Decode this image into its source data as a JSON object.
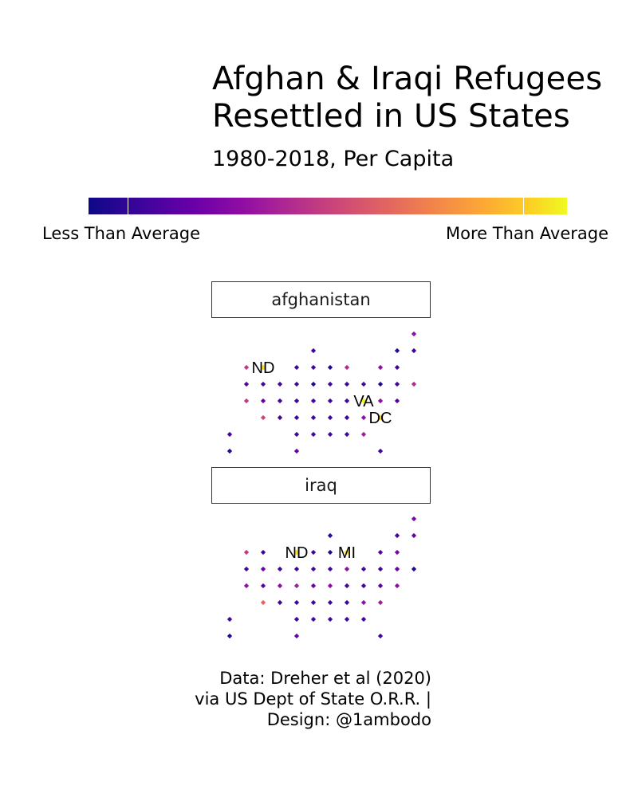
{
  "title_line1": "Afghan & Iraqi Refugees",
  "title_line2": "Resettled in US States",
  "subtitle": "1980-2018, Per Capita",
  "legend": {
    "low_label": "Less Than Average",
    "high_label": "More Than Average"
  },
  "caption": {
    "line1": "Data: Dreher et al (2020)",
    "line2": "via US Dept of State O.R.R. |",
    "line3": "Design: @1ambodo"
  },
  "chart_data": [
    {
      "type": "heatmap",
      "panel": "afghanistan",
      "scale": "plasma",
      "cells": [
        {
          "col": 11,
          "row": 0,
          "v": 0.3
        },
        {
          "col": 5,
          "row": 1,
          "v": 0.1
        },
        {
          "col": 10,
          "row": 1,
          "v": 0.05
        },
        {
          "col": 11,
          "row": 1,
          "v": 0.1
        },
        {
          "col": 1,
          "row": 2,
          "v": 0.45
        },
        {
          "col": 2,
          "row": 2,
          "v": 0.95,
          "label": "ND"
        },
        {
          "col": 4,
          "row": 2,
          "v": 0.1
        },
        {
          "col": 5,
          "row": 2,
          "v": 0.1
        },
        {
          "col": 6,
          "row": 2,
          "v": 0.05
        },
        {
          "col": 7,
          "row": 2,
          "v": 0.4
        },
        {
          "col": 9,
          "row": 2,
          "v": 0.3
        },
        {
          "col": 10,
          "row": 2,
          "v": 0.1
        },
        {
          "col": 1,
          "row": 3,
          "v": 0.15
        },
        {
          "col": 2,
          "row": 3,
          "v": 0.1
        },
        {
          "col": 3,
          "row": 3,
          "v": 0.1
        },
        {
          "col": 4,
          "row": 3,
          "v": 0.1
        },
        {
          "col": 5,
          "row": 3,
          "v": 0.05
        },
        {
          "col": 6,
          "row": 3,
          "v": 0.1
        },
        {
          "col": 7,
          "row": 3,
          "v": 0.1
        },
        {
          "col": 8,
          "row": 3,
          "v": 0.1
        },
        {
          "col": 9,
          "row": 3,
          "v": 0.05
        },
        {
          "col": 10,
          "row": 3,
          "v": 0.1
        },
        {
          "col": 11,
          "row": 3,
          "v": 0.4
        },
        {
          "col": 1,
          "row": 4,
          "v": 0.45
        },
        {
          "col": 2,
          "row": 4,
          "v": 0.2
        },
        {
          "col": 3,
          "row": 4,
          "v": 0.1
        },
        {
          "col": 4,
          "row": 4,
          "v": 0.1
        },
        {
          "col": 5,
          "row": 4,
          "v": 0.1
        },
        {
          "col": 6,
          "row": 4,
          "v": 0.1
        },
        {
          "col": 7,
          "row": 4,
          "v": 0.1
        },
        {
          "col": 8,
          "row": 4,
          "v": 1.0,
          "label": "VA"
        },
        {
          "col": 9,
          "row": 4,
          "v": 0.3
        },
        {
          "col": 10,
          "row": 4,
          "v": 0.15
        },
        {
          "col": 2,
          "row": 5,
          "v": 0.5
        },
        {
          "col": 3,
          "row": 5,
          "v": 0.1
        },
        {
          "col": 4,
          "row": 5,
          "v": 0.1
        },
        {
          "col": 5,
          "row": 5,
          "v": 0.1
        },
        {
          "col": 6,
          "row": 5,
          "v": 0.1
        },
        {
          "col": 7,
          "row": 5,
          "v": 0.1
        },
        {
          "col": 8,
          "row": 5,
          "v": 0.3
        },
        {
          "col": 9,
          "row": 5,
          "v": 0.9,
          "label": "DC"
        },
        {
          "col": 0,
          "row": 6,
          "v": 0.1
        },
        {
          "col": 4,
          "row": 6,
          "v": 0.1
        },
        {
          "col": 5,
          "row": 6,
          "v": 0.1
        },
        {
          "col": 6,
          "row": 6,
          "v": 0.1
        },
        {
          "col": 7,
          "row": 6,
          "v": 0.1
        },
        {
          "col": 8,
          "row": 6,
          "v": 0.35
        },
        {
          "col": 0,
          "row": 7,
          "v": 0.05
        },
        {
          "col": 4,
          "row": 7,
          "v": 0.2
        },
        {
          "col": 9,
          "row": 7,
          "v": 0.1
        }
      ]
    },
    {
      "type": "heatmap",
      "panel": "iraq",
      "scale": "plasma",
      "cells": [
        {
          "col": 11,
          "row": 0,
          "v": 0.25
        },
        {
          "col": 6,
          "row": 1,
          "v": 0.05
        },
        {
          "col": 10,
          "row": 1,
          "v": 0.1
        },
        {
          "col": 11,
          "row": 1,
          "v": 0.2
        },
        {
          "col": 1,
          "row": 2,
          "v": 0.45
        },
        {
          "col": 2,
          "row": 2,
          "v": 0.1
        },
        {
          "col": 4,
          "row": 2,
          "v": 0.95,
          "label": "ND"
        },
        {
          "col": 5,
          "row": 2,
          "v": 0.1
        },
        {
          "col": 6,
          "row": 2,
          "v": 0.05
        },
        {
          "col": 7,
          "row": 2,
          "v": 0.95,
          "label": "MI"
        },
        {
          "col": 9,
          "row": 2,
          "v": 0.15
        },
        {
          "col": 10,
          "row": 2,
          "v": 0.25
        },
        {
          "col": 1,
          "row": 3,
          "v": 0.1
        },
        {
          "col": 2,
          "row": 3,
          "v": 0.2
        },
        {
          "col": 3,
          "row": 3,
          "v": 0.1
        },
        {
          "col": 4,
          "row": 3,
          "v": 0.1
        },
        {
          "col": 5,
          "row": 3,
          "v": 0.1
        },
        {
          "col": 6,
          "row": 3,
          "v": 0.1
        },
        {
          "col": 7,
          "row": 3,
          "v": 0.3
        },
        {
          "col": 8,
          "row": 3,
          "v": 0.1
        },
        {
          "col": 9,
          "row": 3,
          "v": 0.1
        },
        {
          "col": 10,
          "row": 3,
          "v": 0.2
        },
        {
          "col": 11,
          "row": 3,
          "v": 0.05
        },
        {
          "col": 1,
          "row": 4,
          "v": 0.3
        },
        {
          "col": 2,
          "row": 4,
          "v": 0.15
        },
        {
          "col": 3,
          "row": 4,
          "v": 0.3
        },
        {
          "col": 4,
          "row": 4,
          "v": 0.35
        },
        {
          "col": 5,
          "row": 4,
          "v": 0.2
        },
        {
          "col": 6,
          "row": 4,
          "v": 0.3
        },
        {
          "col": 7,
          "row": 4,
          "v": 0.1
        },
        {
          "col": 8,
          "row": 4,
          "v": 0.1
        },
        {
          "col": 9,
          "row": 4,
          "v": 0.15
        },
        {
          "col": 10,
          "row": 4,
          "v": 0.3
        },
        {
          "col": 2,
          "row": 5,
          "v": 0.6
        },
        {
          "col": 3,
          "row": 5,
          "v": 0.1
        },
        {
          "col": 4,
          "row": 5,
          "v": 0.1
        },
        {
          "col": 5,
          "row": 5,
          "v": 0.1
        },
        {
          "col": 6,
          "row": 5,
          "v": 0.1
        },
        {
          "col": 7,
          "row": 5,
          "v": 0.1
        },
        {
          "col": 8,
          "row": 5,
          "v": 0.3
        },
        {
          "col": 9,
          "row": 5,
          "v": 0.35
        },
        {
          "col": 0,
          "row": 6,
          "v": 0.1
        },
        {
          "col": 4,
          "row": 6,
          "v": 0.1
        },
        {
          "col": 5,
          "row": 6,
          "v": 0.1
        },
        {
          "col": 6,
          "row": 6,
          "v": 0.1
        },
        {
          "col": 7,
          "row": 6,
          "v": 0.1
        },
        {
          "col": 8,
          "row": 6,
          "v": 0.1
        },
        {
          "col": 0,
          "row": 7,
          "v": 0.05
        },
        {
          "col": 4,
          "row": 7,
          "v": 0.2
        },
        {
          "col": 9,
          "row": 7,
          "v": 0.1
        }
      ]
    }
  ]
}
